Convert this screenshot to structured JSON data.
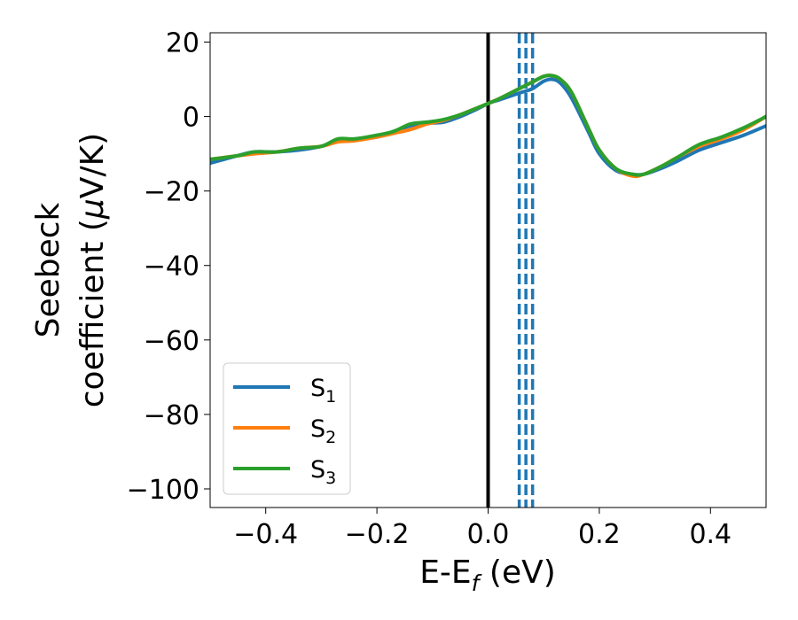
{
  "chart_data": {
    "type": "line",
    "xlabel": {
      "main": "E-E",
      "sub": "f",
      "tail": " (eV)"
    },
    "ylabel": {
      "line1": "Seebeck",
      "line2_pre": "coefficient  (",
      "mu": "μ",
      "line2_post": "V/K)"
    },
    "xlim": [
      -0.5,
      0.5
    ],
    "ylim": [
      -105,
      22.5
    ],
    "xticks": [
      -0.4,
      -0.2,
      0.0,
      0.2,
      0.4
    ],
    "xtick_labels": [
      "−0.4",
      "−0.2",
      "0.0",
      "0.2",
      "0.4"
    ],
    "yticks": [
      20,
      0,
      -20,
      -40,
      -60,
      -80,
      -100
    ],
    "ytick_labels": [
      "20",
      "0",
      "−20",
      "−40",
      "−60",
      "−80",
      "−100"
    ],
    "grid": false,
    "legend_position": "lower-left",
    "vertical_lines": [
      {
        "x": 0.0,
        "style": "solid",
        "color": "#000000"
      },
      {
        "x": 0.056,
        "style": "dashed",
        "color": "#1f77b4"
      },
      {
        "x": 0.068,
        "style": "dashed",
        "color": "#1f77b4"
      },
      {
        "x": 0.08,
        "style": "dashed",
        "color": "#1f77b4"
      }
    ],
    "series": [
      {
        "name": "S",
        "sub": "1",
        "color": "#1f77b4",
        "x": [
          -0.5,
          -0.45,
          -0.42,
          -0.38,
          -0.34,
          -0.3,
          -0.27,
          -0.24,
          -0.2,
          -0.17,
          -0.14,
          -0.11,
          -0.08,
          -0.05,
          -0.02,
          0.0,
          0.02,
          0.04,
          0.06,
          0.08,
          0.1,
          0.115,
          0.13,
          0.15,
          0.18,
          0.2,
          0.23,
          0.26,
          0.28,
          0.31,
          0.34,
          0.38,
          0.42,
          0.46,
          0.5
        ],
        "values": [
          -12.5,
          -10.5,
          -9.5,
          -9.5,
          -9.0,
          -8.0,
          -6.5,
          -6.0,
          -5.5,
          -4.0,
          -2.5,
          -1.8,
          -1.5,
          0.0,
          2.0,
          3.5,
          4.5,
          5.5,
          6.5,
          7.5,
          9.5,
          10.0,
          9.0,
          5.0,
          -4.0,
          -10.0,
          -14.5,
          -15.5,
          -15.5,
          -14.0,
          -12.0,
          -9.0,
          -7.0,
          -5.0,
          -2.5
        ]
      },
      {
        "name": "S",
        "sub": "2",
        "color": "#ff7f0e",
        "x": [
          -0.5,
          -0.45,
          -0.42,
          -0.38,
          -0.34,
          -0.3,
          -0.27,
          -0.24,
          -0.2,
          -0.17,
          -0.14,
          -0.11,
          -0.08,
          -0.05,
          -0.02,
          0.0,
          0.02,
          0.04,
          0.06,
          0.08,
          0.1,
          0.115,
          0.13,
          0.15,
          0.18,
          0.2,
          0.23,
          0.26,
          0.28,
          0.31,
          0.34,
          0.38,
          0.42,
          0.46,
          0.5
        ],
        "values": [
          -11.5,
          -10.5,
          -10.0,
          -9.5,
          -8.5,
          -8.0,
          -6.8,
          -6.5,
          -5.5,
          -4.5,
          -3.5,
          -2.0,
          -1.0,
          0.5,
          2.3,
          3.5,
          4.8,
          6.3,
          7.8,
          9.3,
          10.8,
          11.0,
          10.0,
          6.5,
          -3.0,
          -9.0,
          -14.0,
          -16.0,
          -15.5,
          -13.5,
          -11.0,
          -8.0,
          -6.0,
          -3.5,
          0.0
        ]
      },
      {
        "name": "S",
        "sub": "3",
        "color": "#2ca02c",
        "x": [
          -0.5,
          -0.45,
          -0.42,
          -0.38,
          -0.34,
          -0.3,
          -0.27,
          -0.24,
          -0.2,
          -0.17,
          -0.14,
          -0.11,
          -0.08,
          -0.05,
          -0.02,
          0.0,
          0.02,
          0.04,
          0.06,
          0.08,
          0.1,
          0.115,
          0.13,
          0.15,
          0.18,
          0.2,
          0.23,
          0.26,
          0.28,
          0.31,
          0.34,
          0.38,
          0.42,
          0.46,
          0.5
        ],
        "values": [
          -11.5,
          -10.5,
          -9.5,
          -9.5,
          -8.5,
          -8.0,
          -6.0,
          -6.0,
          -5.0,
          -4.0,
          -2.0,
          -1.5,
          -0.8,
          0.5,
          2.3,
          3.5,
          4.8,
          6.3,
          7.8,
          9.3,
          10.8,
          11.0,
          10.0,
          6.5,
          -3.0,
          -9.0,
          -14.0,
          -15.5,
          -15.5,
          -13.5,
          -11.0,
          -7.5,
          -5.5,
          -3.0,
          0.0
        ]
      }
    ]
  }
}
